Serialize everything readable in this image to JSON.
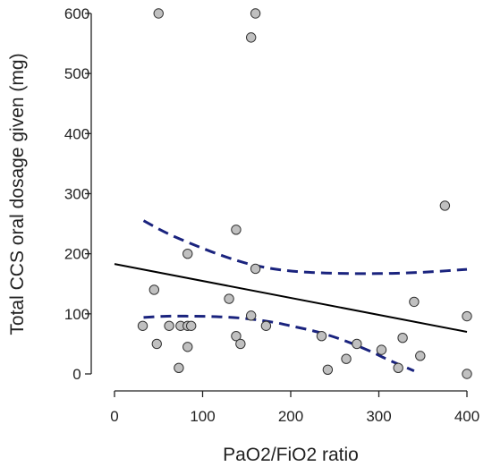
{
  "chart_data": {
    "type": "scatter",
    "title": "",
    "xlabel": "PaO2/FiO2 ratio",
    "ylabel": "Total CCS oral dosage given (mg)",
    "xlim": [
      0,
      400
    ],
    "ylim": [
      0,
      600
    ],
    "x_ticks": [
      "0",
      "100",
      "200",
      "300",
      "400"
    ],
    "y_ticks": [
      "0",
      "100",
      "200",
      "300",
      "400",
      "500",
      "600"
    ],
    "grid": false,
    "legend": "none",
    "points": [
      {
        "x": 50,
        "y": 600
      },
      {
        "x": 160,
        "y": 600
      },
      {
        "x": 155,
        "y": 560
      },
      {
        "x": 375,
        "y": 280
      },
      {
        "x": 138,
        "y": 240
      },
      {
        "x": 83,
        "y": 200
      },
      {
        "x": 160,
        "y": 175
      },
      {
        "x": 45,
        "y": 140
      },
      {
        "x": 130,
        "y": 125
      },
      {
        "x": 340,
        "y": 120
      },
      {
        "x": 155,
        "y": 97
      },
      {
        "x": 400,
        "y": 96
      },
      {
        "x": 32,
        "y": 80
      },
      {
        "x": 62,
        "y": 80
      },
      {
        "x": 75,
        "y": 80
      },
      {
        "x": 83,
        "y": 80
      },
      {
        "x": 87,
        "y": 80
      },
      {
        "x": 172,
        "y": 80
      },
      {
        "x": 138,
        "y": 63
      },
      {
        "x": 235,
        "y": 63
      },
      {
        "x": 327,
        "y": 60
      },
      {
        "x": 143,
        "y": 50
      },
      {
        "x": 48,
        "y": 50
      },
      {
        "x": 275,
        "y": 50
      },
      {
        "x": 83,
        "y": 45
      },
      {
        "x": 303,
        "y": 40
      },
      {
        "x": 347,
        "y": 30
      },
      {
        "x": 263,
        "y": 25
      },
      {
        "x": 73,
        "y": 10
      },
      {
        "x": 322,
        "y": 10
      },
      {
        "x": 242,
        "y": 7
      },
      {
        "x": 400,
        "y": 0
      }
    ],
    "fit_line": {
      "x": [
        0,
        400
      ],
      "y": [
        183,
        70
      ]
    },
    "ci_upper": {
      "x": [
        33,
        60,
        90,
        120,
        150,
        180,
        210,
        240,
        270,
        300,
        330,
        360,
        400
      ],
      "y": [
        255,
        234,
        215,
        198,
        184,
        175,
        170,
        168,
        167,
        167,
        168,
        170,
        174
      ]
    },
    "ci_lower": {
      "x": [
        33,
        60,
        90,
        120,
        150,
        180,
        200,
        230,
        260,
        290,
        310,
        340
      ],
      "y": [
        94,
        96,
        96,
        95,
        92,
        86,
        80,
        70,
        56,
        38,
        24,
        5
      ]
    },
    "colors": {
      "point_fill": "#c0c0c0",
      "point_stroke": "#333333",
      "fit_line": "#000000",
      "ci_line": "#1a237e",
      "axis": "#222222"
    }
  }
}
